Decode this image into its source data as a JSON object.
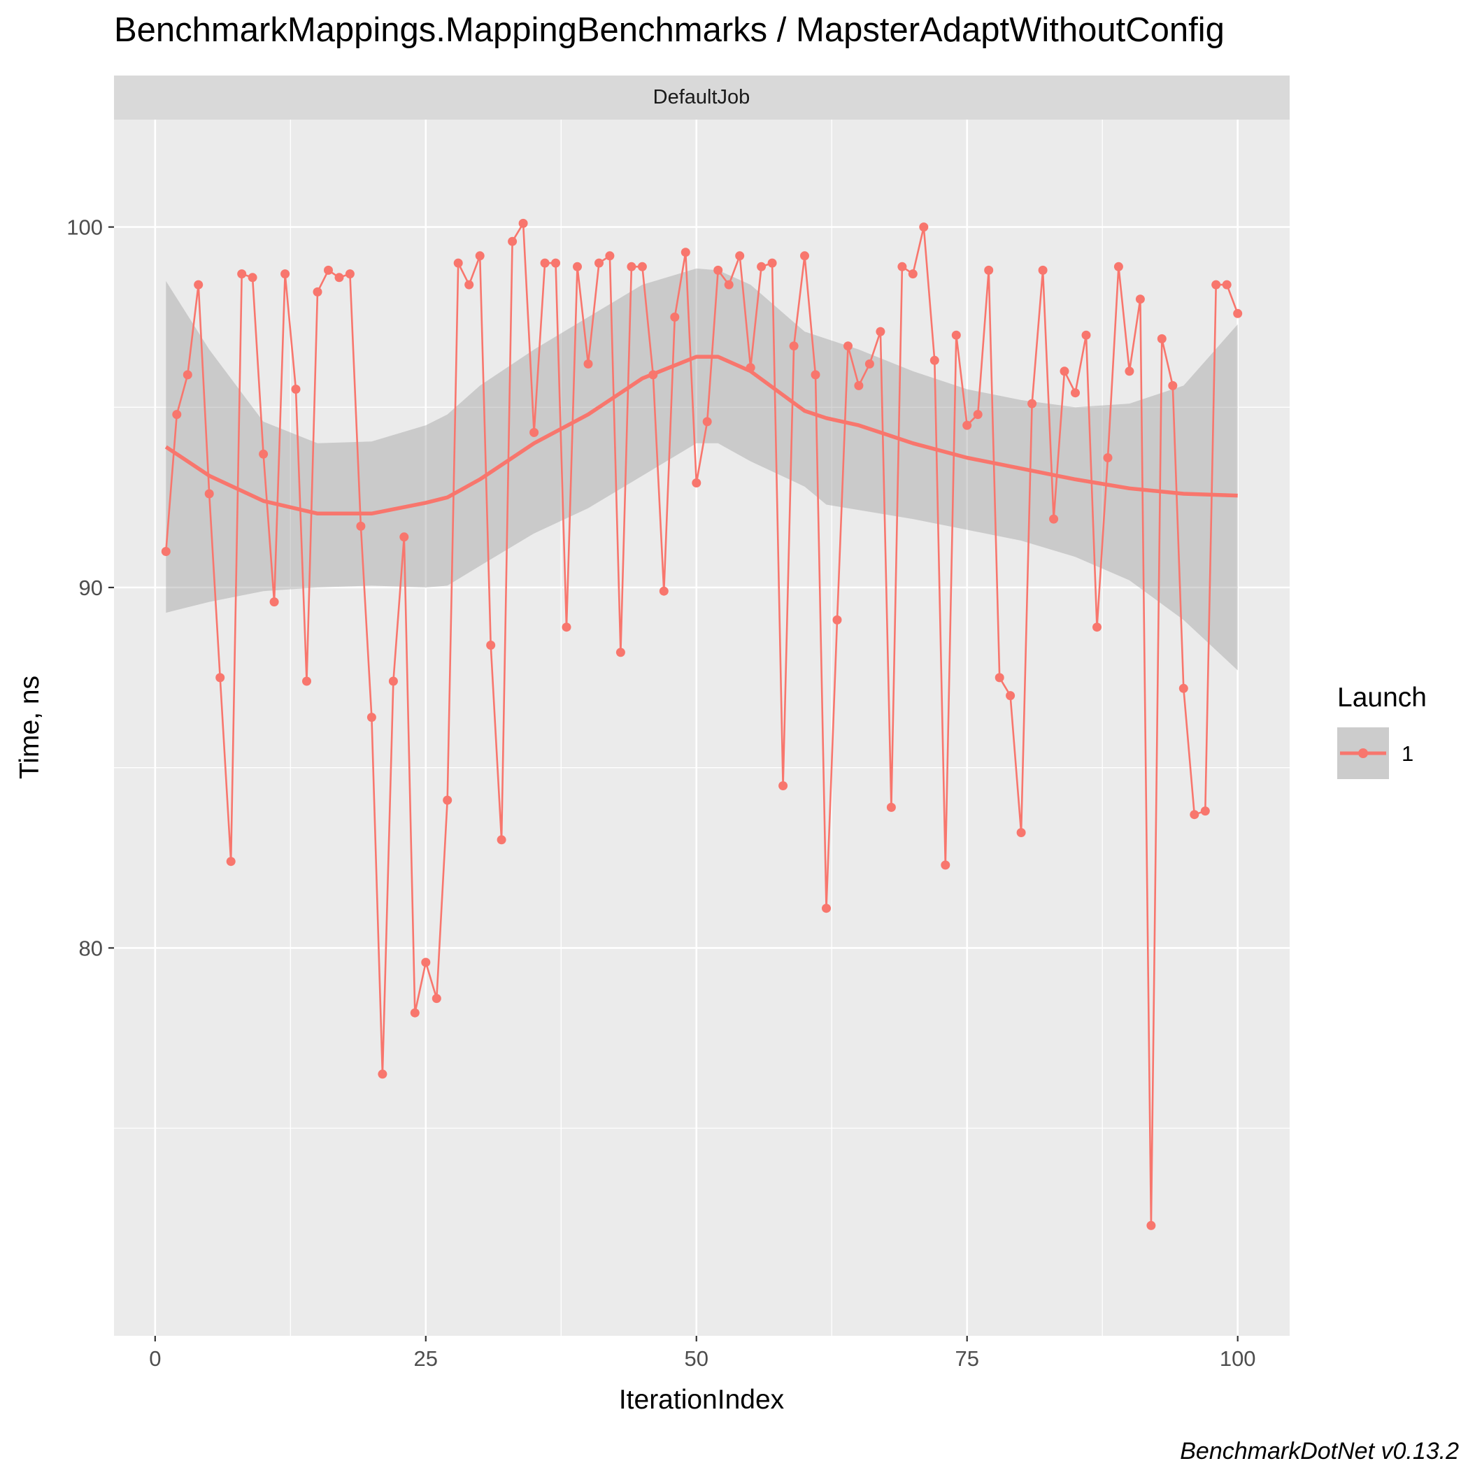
{
  "chart_data": {
    "type": "line",
    "title": "BenchmarkMappings.MappingBenchmarks / MapsterAdaptWithoutConfig",
    "facet_label": "DefaultJob",
    "xlabel": "IterationIndex",
    "ylabel": "Time, ns",
    "caption": "BenchmarkDotNet v0.13.2",
    "xlim": [
      -3.8,
      104.8
    ],
    "ylim": [
      69.24,
      102.98
    ],
    "x_ticks": [
      0,
      25,
      50,
      75,
      100
    ],
    "x_tick_labels": [
      "0",
      "25",
      "50",
      "75",
      "100"
    ],
    "y_ticks": [
      80,
      90,
      100
    ],
    "y_tick_labels": [
      "80",
      "90",
      "100"
    ],
    "y_minor_ticks": [
      75,
      85,
      95
    ],
    "grid": true,
    "legend": {
      "title": "Launch",
      "entries": [
        "1"
      ],
      "position": "right"
    },
    "colors": {
      "series": "#F8766D",
      "ribbon": "#999999",
      "panel": "#EBEBEB",
      "strip": "#D9D9D9",
      "grid": "#FFFFFF"
    },
    "series": [
      {
        "name": "1",
        "x": [
          1,
          2,
          3,
          4,
          5,
          6,
          7,
          8,
          9,
          10,
          11,
          12,
          13,
          14,
          15,
          16,
          17,
          18,
          19,
          20,
          21,
          22,
          23,
          24,
          25,
          26,
          27,
          28,
          29,
          30,
          31,
          32,
          33,
          34,
          35,
          36,
          37,
          38,
          39,
          40,
          41,
          42,
          43,
          44,
          45,
          46,
          47,
          48,
          49,
          50,
          51,
          52,
          53,
          54,
          55,
          56,
          57,
          58,
          59,
          60,
          61,
          62,
          63,
          64,
          65,
          66,
          67,
          68,
          69,
          70,
          71,
          72,
          73,
          74,
          75,
          76,
          77,
          78,
          79,
          80,
          81,
          82,
          83,
          84,
          85,
          86,
          87,
          88,
          89,
          90,
          91,
          92,
          93,
          94,
          95,
          96,
          97,
          98,
          99,
          100
        ],
        "values": [
          91.0,
          94.8,
          95.9,
          98.4,
          92.6,
          87.5,
          82.4,
          98.7,
          98.6,
          93.7,
          89.6,
          98.7,
          95.5,
          87.4,
          98.2,
          98.8,
          98.6,
          98.7,
          91.7,
          86.4,
          76.5,
          87.4,
          91.4,
          78.2,
          79.6,
          78.6,
          84.1,
          99.0,
          98.4,
          99.2,
          88.4,
          83.0,
          99.6,
          100.1,
          94.3,
          99.0,
          99.0,
          88.9,
          98.9,
          96.2,
          99.0,
          99.2,
          88.2,
          98.9,
          98.9,
          95.9,
          89.9,
          97.5,
          99.3,
          92.9,
          94.6,
          98.8,
          98.4,
          99.2,
          96.1,
          98.9,
          99.0,
          84.5,
          96.7,
          99.2,
          95.9,
          81.1,
          89.1,
          96.7,
          95.6,
          96.2,
          97.1,
          83.9,
          98.9,
          98.7,
          100.0,
          96.3,
          82.3,
          97.0,
          94.5,
          94.8,
          98.8,
          87.5,
          87.0,
          83.2,
          95.1,
          98.8,
          91.9,
          96.0,
          95.4,
          97.0,
          88.9,
          93.6,
          98.9,
          96.0,
          98.0,
          72.3,
          96.9,
          95.6,
          87.2,
          83.7,
          83.8,
          98.4,
          98.4,
          97.6
        ]
      }
    ],
    "smooth": {
      "x": [
        1,
        5,
        10,
        15,
        20,
        25,
        27,
        30,
        35,
        40,
        45,
        50,
        52,
        55,
        60,
        62,
        65,
        70,
        75,
        80,
        85,
        90,
        95,
        100
      ],
      "y": [
        93.9,
        93.1,
        92.4,
        92.05,
        92.05,
        92.35,
        92.5,
        93.0,
        94.0,
        94.8,
        95.8,
        96.4,
        96.4,
        96.0,
        94.9,
        94.7,
        94.5,
        94.0,
        93.6,
        93.3,
        93.0,
        92.75,
        92.6,
        92.55
      ],
      "lower": [
        89.3,
        89.6,
        89.9,
        90.0,
        90.05,
        90.0,
        90.05,
        90.6,
        91.5,
        92.2,
        93.1,
        94.0,
        94.0,
        93.5,
        92.8,
        92.3,
        92.15,
        91.9,
        91.6,
        91.3,
        90.85,
        90.2,
        89.1,
        87.7
      ],
      "upper": [
        98.5,
        96.6,
        94.6,
        94.0,
        94.05,
        94.5,
        94.8,
        95.6,
        96.6,
        97.5,
        98.4,
        98.85,
        98.8,
        98.4,
        97.1,
        96.9,
        96.6,
        96.0,
        95.5,
        95.2,
        95.0,
        95.1,
        95.6,
        97.3
      ]
    }
  }
}
